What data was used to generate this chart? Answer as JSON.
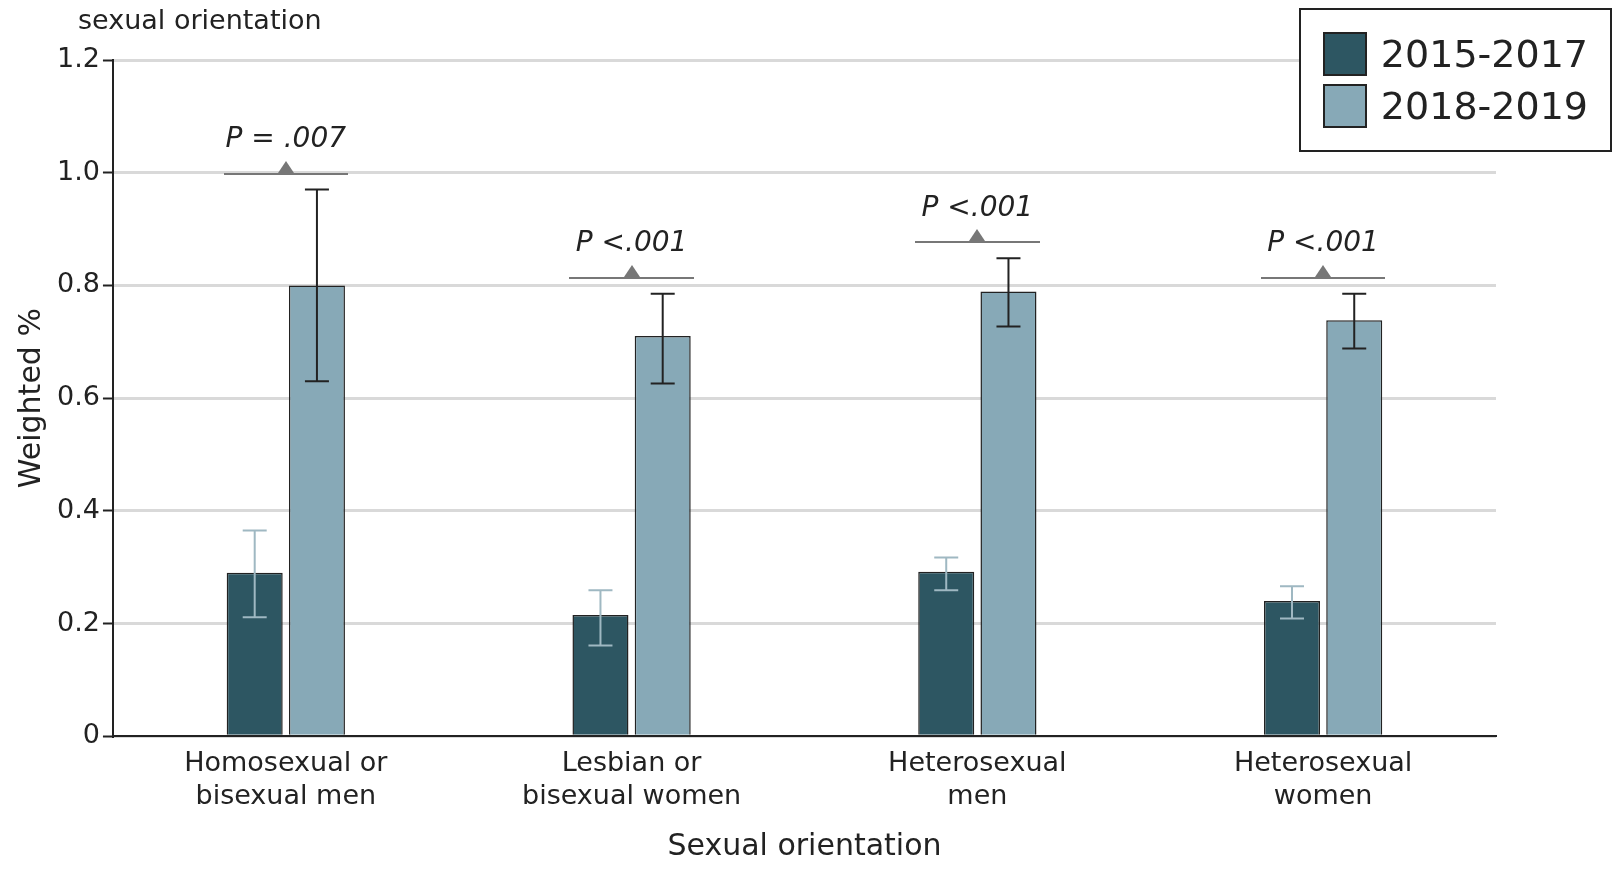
{
  "chart_data": {
    "type": "bar",
    "title": "sexual orientation",
    "xlabel": "Sexual orientation",
    "ylabel": "Weighted %",
    "categories": [
      "Homosexual or bisexual men",
      "Lesbian or bisexual women",
      "Heterosexual men",
      "Heterosexual women"
    ],
    "series": [
      {
        "name": "2015-2017",
        "color": "#2d5662",
        "values": [
          0.29,
          0.215,
          0.292,
          0.24
        ],
        "errors": [
          [
            0.211,
            0.365
          ],
          [
            0.161,
            0.259
          ],
          [
            0.259,
            0.317
          ],
          [
            0.209,
            0.266
          ]
        ]
      },
      {
        "name": "2018-2019",
        "color": "#87a9b7",
        "values": [
          0.8,
          0.71,
          0.789,
          0.738
        ],
        "errors": [
          [
            0.63,
            0.97
          ],
          [
            0.626,
            0.785
          ],
          [
            0.727,
            0.848
          ],
          [
            0.688,
            0.785
          ]
        ]
      }
    ],
    "ylim": [
      0,
      1.2
    ],
    "yticks": [
      0,
      0.2,
      0.4,
      0.6,
      0.8,
      {
        "value": 1,
        "label": "1.0"
      },
      1.2
    ],
    "grid": "y",
    "legend": "top right",
    "annotations": [
      "P = .007",
      "P <.001",
      "P <.001",
      "P <.001"
    ]
  }
}
